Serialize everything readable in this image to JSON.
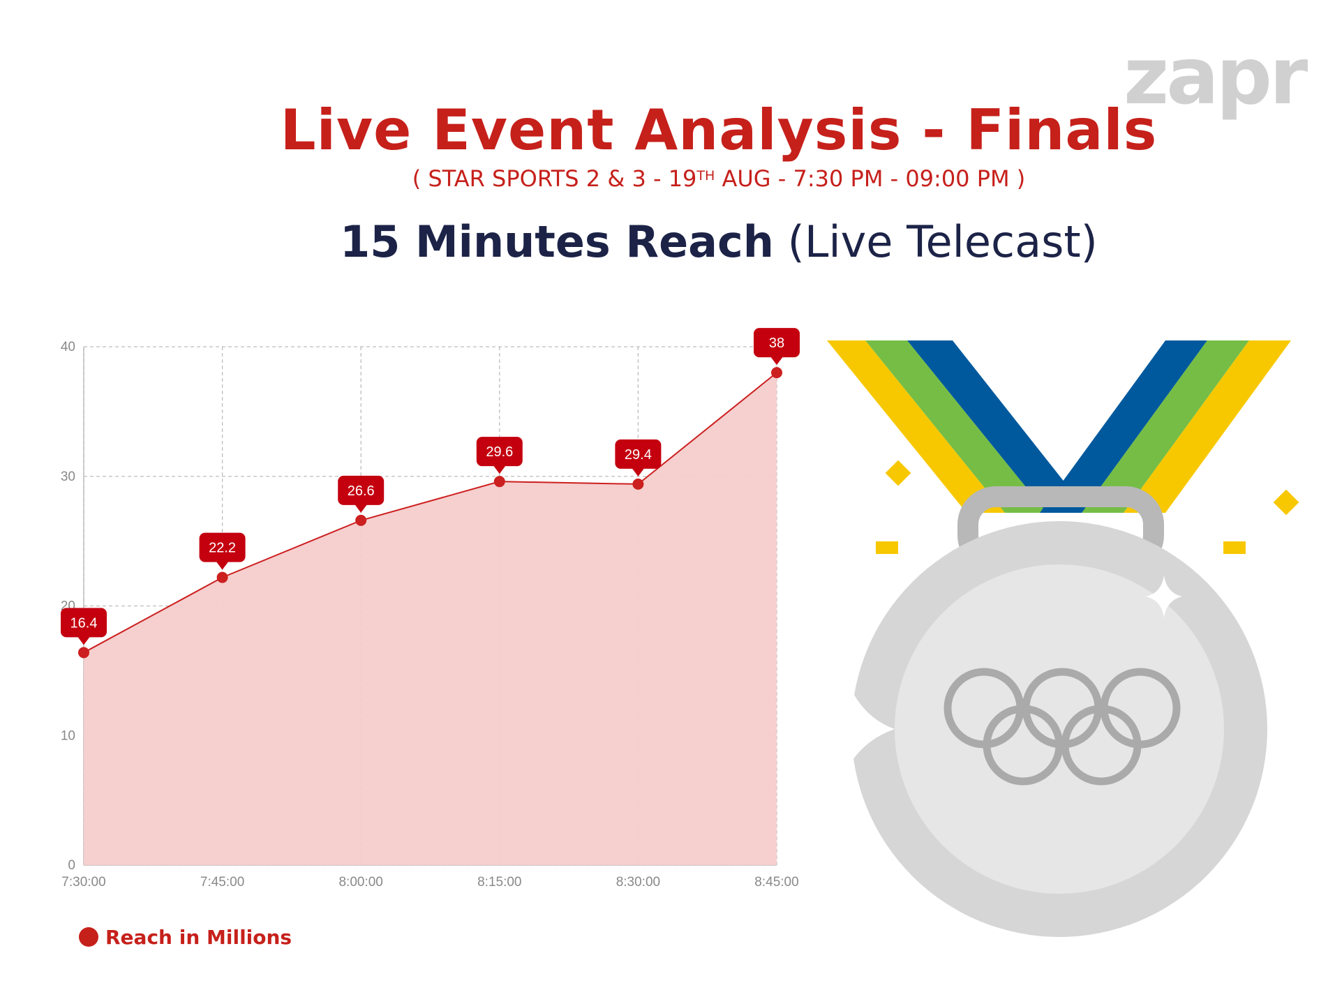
{
  "brand": {
    "logo_text": "zapr",
    "logo_color": "#d0d0d0",
    "accent": "#c6201b",
    "navy": "#1c2347"
  },
  "header": {
    "title": "Live Event Analysis - Finals",
    "subtitle_pre": "( STAR SPORTS 2 & 3 - 19",
    "subtitle_sup": "TH",
    "subtitle_post": " AUG - 7:30 PM - 09:00 PM )",
    "heading_bold": "15 Minutes Reach",
    "heading_light": " (Live Telecast)"
  },
  "chart_data": {
    "type": "area",
    "x": [
      "7:30:00",
      "7:45:00",
      "8:00:00",
      "8:15:00",
      "8:30:00",
      "8:45:00"
    ],
    "series": [
      {
        "name": "Reach in Millions",
        "values": [
          16.4,
          22.2,
          26.6,
          29.6,
          29.4,
          38
        ]
      }
    ],
    "ylim": [
      0,
      40
    ],
    "yticks": [
      0,
      10,
      20,
      30,
      40
    ],
    "grid": true,
    "legend_position": "bottom-left",
    "data_labels": [
      "16.4",
      "22.2",
      "26.6",
      "29.6",
      "29.4",
      "38"
    ],
    "line_color": "#cc1f1f",
    "fill_color": "#f5cccc"
  },
  "legend": {
    "label": "Reach in Millions"
  },
  "illustration": {
    "medal_icon": "olympic-silver-medal-icon"
  }
}
